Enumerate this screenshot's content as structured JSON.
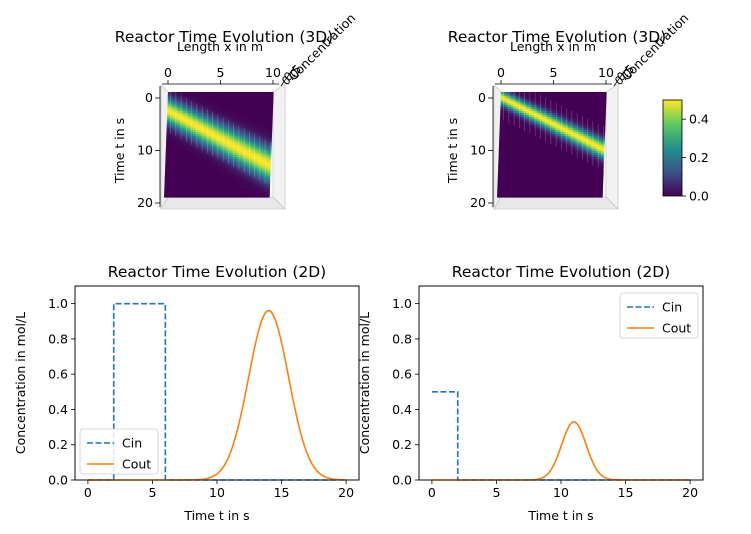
{
  "colors": {
    "cin": "#1f77b4",
    "cout": "#ff7f0e",
    "viridis": [
      "#440154",
      "#3b528b",
      "#21918c",
      "#5ec962",
      "#fde725"
    ]
  },
  "chart_data": [
    {
      "type": "heatmap",
      "title": "Reactor Time Evolution (3D)",
      "xlabel": "Length x in m",
      "ylabel": "Time t in s",
      "zlabel": "Concentration",
      "xlim": [
        0,
        10
      ],
      "ylim": [
        0,
        20
      ],
      "xticks": [
        "0",
        "5",
        "10"
      ],
      "yticks": [
        "0",
        "10",
        "20"
      ],
      "zticks": [
        "0.0",
        "0.5"
      ],
      "band": {
        "t_at_x0": 3.5,
        "t_at_x10": 14,
        "peak": 1.0,
        "width": 1.6
      }
    },
    {
      "type": "heatmap",
      "title": "Reactor Time Evolution (3D)",
      "xlabel": "Length x in m",
      "ylabel": "Time t in s",
      "zlabel": "Concentration",
      "xlim": [
        0,
        10
      ],
      "ylim": [
        0,
        20
      ],
      "xticks": [
        "0",
        "5",
        "10"
      ],
      "yticks": [
        "0",
        "10",
        "20"
      ],
      "zticks": [
        "0.0",
        "0.5"
      ],
      "band": {
        "t_at_x0": 1.0,
        "t_at_x10": 11,
        "peak": 0.5,
        "width": 0.9
      },
      "colorbar": {
        "range": [
          0,
          0.5
        ],
        "ticks": [
          "0.0",
          "0.2",
          "0.4"
        ],
        "tick_values": [
          0,
          0.2,
          0.4
        ]
      }
    },
    {
      "type": "line",
      "title": "Reactor Time Evolution (2D)",
      "xlabel": "Time t in s",
      "ylabel": "Concentration in mol/L",
      "xlim": [
        -1,
        21
      ],
      "ylim": [
        0,
        1.1
      ],
      "xticks": [
        0,
        5,
        10,
        15,
        20
      ],
      "yticks": [
        0.0,
        0.2,
        0.4,
        0.6,
        0.8,
        1.0
      ],
      "legend": "lower-left",
      "series": [
        {
          "name": "Cin",
          "style": "dashed",
          "x": [
            0,
            2,
            2,
            6,
            6,
            20
          ],
          "y": [
            0,
            0,
            1.0,
            1.0,
            0,
            0
          ]
        },
        {
          "name": "Cout",
          "style": "solid",
          "gaussian": {
            "x0": 0,
            "x1": 20,
            "amp": 0.96,
            "center": 14,
            "sigma": 1.55
          }
        }
      ]
    },
    {
      "type": "line",
      "title": "Reactor Time Evolution (2D)",
      "xlabel": "Time t in s",
      "ylabel": "Concentration in mol/L",
      "xlim": [
        -1,
        21
      ],
      "ylim": [
        0,
        1.1
      ],
      "xticks": [
        0,
        5,
        10,
        15,
        20
      ],
      "yticks": [
        0.0,
        0.2,
        0.4,
        0.6,
        0.8,
        1.0
      ],
      "legend": "upper-right",
      "series": [
        {
          "name": "Cin",
          "style": "dashed",
          "x": [
            0,
            2,
            2,
            20
          ],
          "y": [
            0.5,
            0.5,
            0,
            0
          ]
        },
        {
          "name": "Cout",
          "style": "solid",
          "gaussian": {
            "x0": 0,
            "x1": 20,
            "amp": 0.33,
            "center": 11,
            "sigma": 0.95
          }
        }
      ]
    }
  ]
}
